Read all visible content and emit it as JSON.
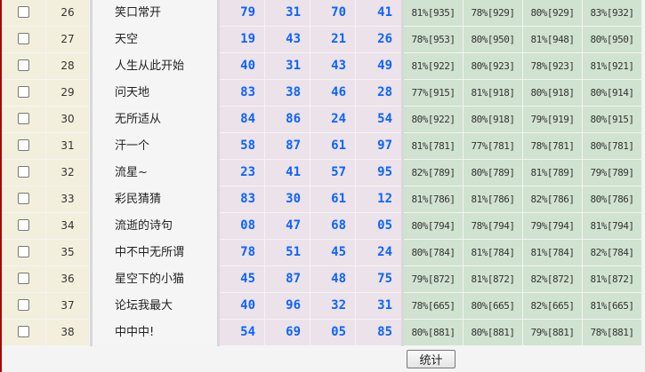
{
  "rows": [
    {
      "no": "26",
      "name": "笑口常开",
      "nums": [
        "79",
        "31",
        "70",
        "41"
      ],
      "pcts": [
        "81%[935]",
        "78%[929]",
        "80%[929]",
        "83%[932]"
      ]
    },
    {
      "no": "27",
      "name": "天空",
      "nums": [
        "19",
        "43",
        "21",
        "26"
      ],
      "pcts": [
        "78%[953]",
        "80%[950]",
        "81%[948]",
        "80%[950]"
      ]
    },
    {
      "no": "28",
      "name": "人生从此开始",
      "nums": [
        "40",
        "31",
        "43",
        "49"
      ],
      "pcts": [
        "81%[922]",
        "80%[923]",
        "78%[923]",
        "81%[921]"
      ]
    },
    {
      "no": "29",
      "name": "问天地",
      "nums": [
        "83",
        "38",
        "46",
        "28"
      ],
      "pcts": [
        "77%[915]",
        "81%[918]",
        "80%[918]",
        "80%[914]"
      ]
    },
    {
      "no": "30",
      "name": "无所适从",
      "nums": [
        "84",
        "86",
        "24",
        "54"
      ],
      "pcts": [
        "80%[922]",
        "80%[918]",
        "79%[919]",
        "80%[915]"
      ]
    },
    {
      "no": "31",
      "name": "汗一个",
      "nums": [
        "58",
        "87",
        "61",
        "97"
      ],
      "pcts": [
        "81%[781]",
        "77%[781]",
        "78%[781]",
        "80%[781]"
      ]
    },
    {
      "no": "32",
      "name": "流星~",
      "nums": [
        "23",
        "41",
        "57",
        "95"
      ],
      "pcts": [
        "82%[789]",
        "80%[789]",
        "81%[789]",
        "79%[789]"
      ]
    },
    {
      "no": "33",
      "name": "彩民猜猜",
      "nums": [
        "83",
        "30",
        "61",
        "12"
      ],
      "pcts": [
        "81%[786]",
        "81%[786]",
        "82%[786]",
        "80%[786]"
      ]
    },
    {
      "no": "34",
      "name": "流逝的诗句",
      "nums": [
        "08",
        "47",
        "68",
        "05"
      ],
      "pcts": [
        "80%[794]",
        "78%[794]",
        "79%[794]",
        "81%[794]"
      ]
    },
    {
      "no": "35",
      "name": "中不中无所谓",
      "nums": [
        "78",
        "51",
        "45",
        "24"
      ],
      "pcts": [
        "80%[784]",
        "81%[784]",
        "81%[784]",
        "82%[784]"
      ]
    },
    {
      "no": "36",
      "name": "星空下的小猫",
      "nums": [
        "45",
        "87",
        "48",
        "75"
      ],
      "pcts": [
        "79%[872]",
        "81%[872]",
        "82%[872]",
        "81%[872]"
      ]
    },
    {
      "no": "37",
      "name": "论坛我最大",
      "nums": [
        "40",
        "96",
        "32",
        "31"
      ],
      "pcts": [
        "78%[665]",
        "80%[665]",
        "82%[665]",
        "81%[665]"
      ]
    },
    {
      "no": "38",
      "name": "中中中!",
      "nums": [
        "54",
        "69",
        "05",
        "85"
      ],
      "pcts": [
        "80%[881]",
        "80%[881]",
        "79%[881]",
        "78%[881]"
      ]
    }
  ],
  "stat_button": "统计"
}
